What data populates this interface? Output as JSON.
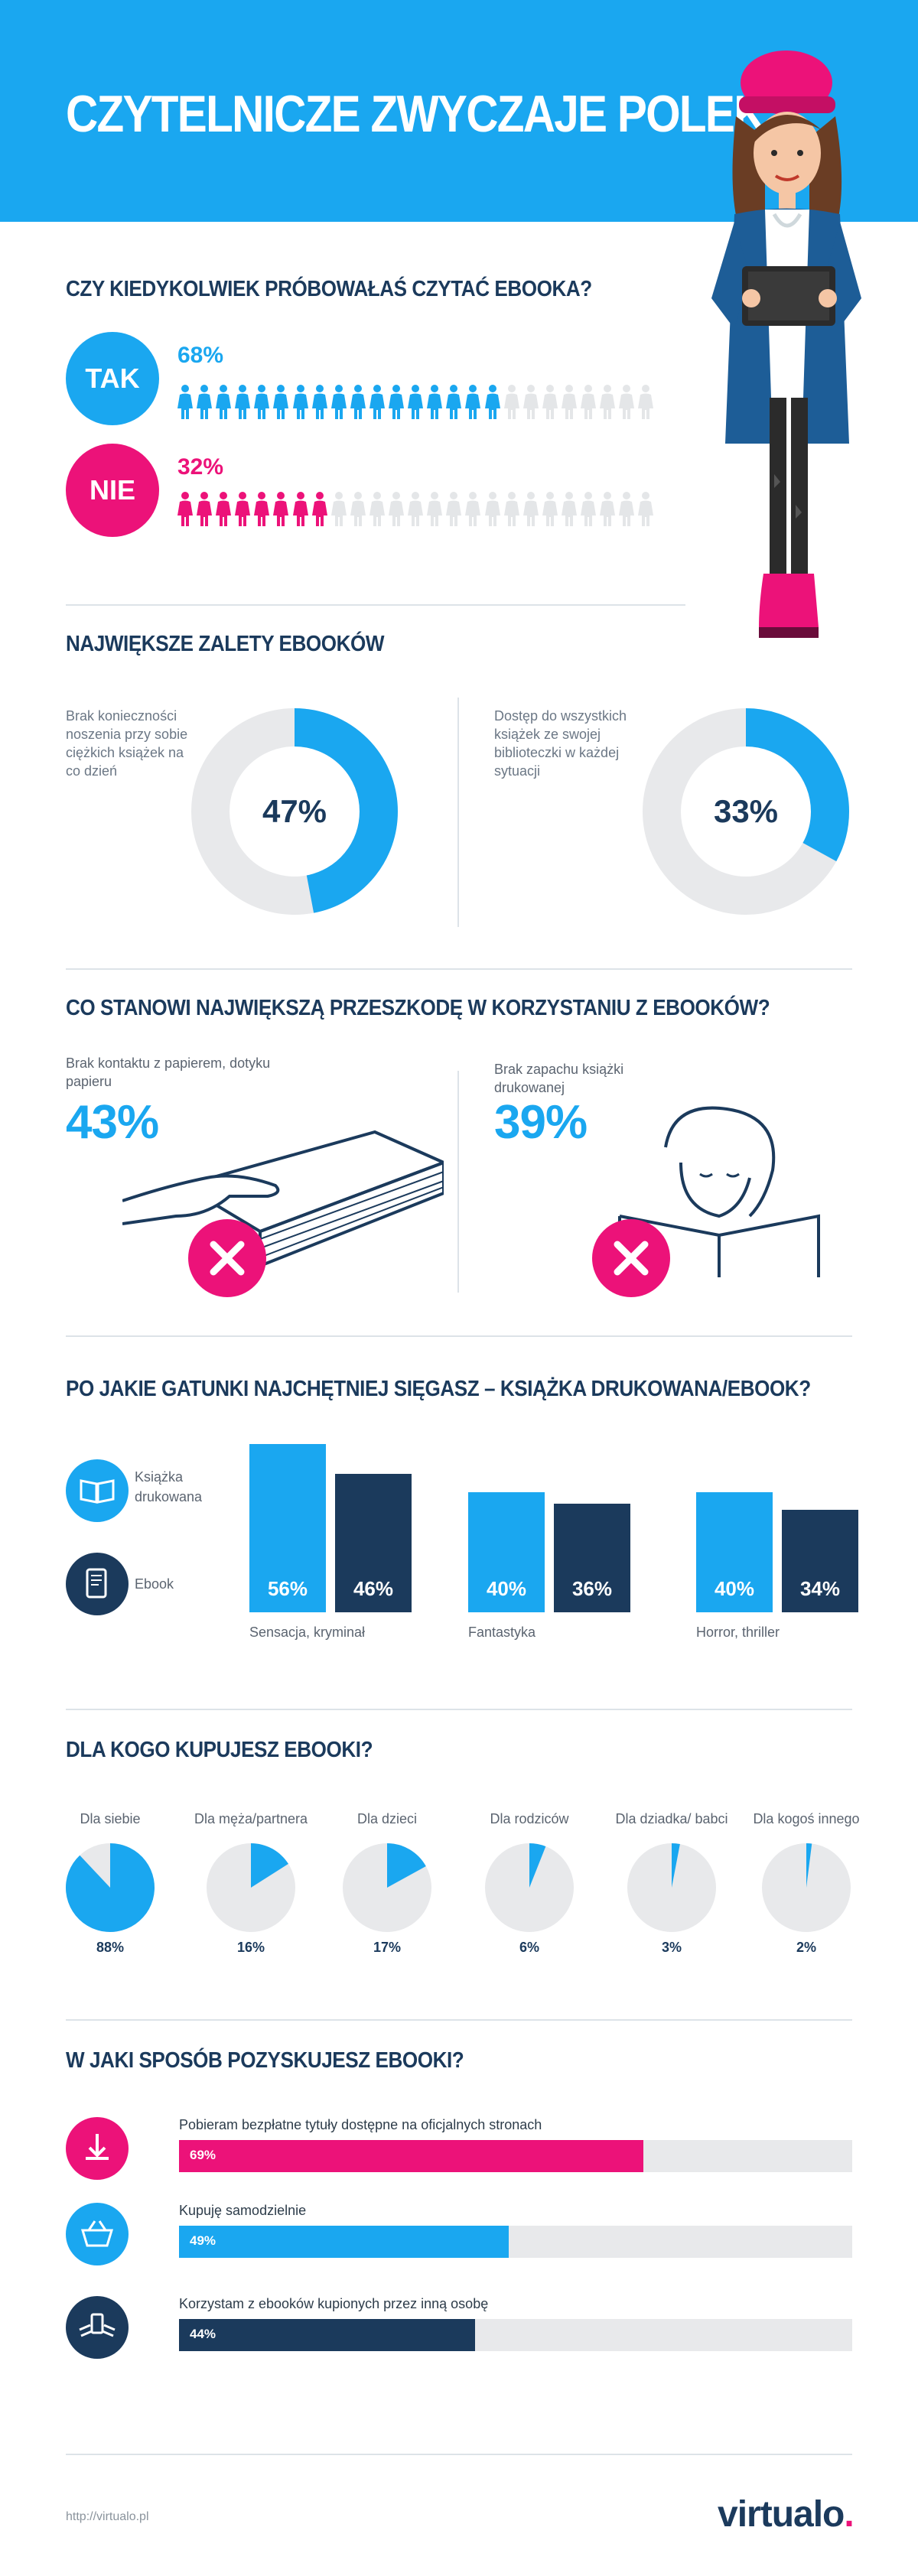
{
  "header": {
    "title": "CZYTELNICZE ZWYCZAJE POLEK."
  },
  "colors": {
    "blue": "#1aa7f0",
    "navy": "#1b3a5c",
    "pink": "#ec1279",
    "gray": "#e8e9eb"
  },
  "q1": {
    "title": "CZY KIEDYKOLWIEK PRÓBOWAŁAŚ CZYTAĆ EBOOKA?",
    "yes": {
      "label": "TAK",
      "value_text": "68%",
      "value": 68,
      "icons_filled": 17,
      "icons_total": 25
    },
    "no": {
      "label": "NIE",
      "value_text": "32%",
      "value": 32,
      "icons_filled": 8,
      "icons_total": 25
    }
  },
  "advantages": {
    "title": "NAJWIĘKSZE ZALETY EBOOKÓW",
    "items": [
      {
        "label": "Brak konieczności noszenia przy sobie ciężkich książek na co dzień",
        "value_text": "47%",
        "value": 47
      },
      {
        "label": "Dostęp do wszystkich książek ze swojej biblioteczki w każdej sytuacji",
        "value_text": "33%",
        "value": 33
      }
    ]
  },
  "obstacles": {
    "title": "CO STANOWI NAJWIĘKSZĄ PRZESZKODĘ W KORZYSTANIU Z EBOOKÓW?",
    "items": [
      {
        "label": "Brak kontaktu z papierem, dotyku papieru",
        "value_text": "43%",
        "value": 43
      },
      {
        "label": "Brak zapachu książki drukowanej",
        "value_text": "39%",
        "value": 39
      }
    ]
  },
  "chart_data": [
    {
      "type": "bar",
      "title": "PO JAKIE GATUNKI NAJCHĘTNIEJ SIĘGASZ – KSIĄŻKA DRUKOWANA/EBOOK?",
      "categories": [
        "Sensacja, kryminał",
        "Fantastyka",
        "Horror, thriller"
      ],
      "series": [
        {
          "name": "Książka drukowana",
          "values": [
            56,
            40,
            40
          ],
          "labels": [
            "56%",
            "40%",
            "40%"
          ]
        },
        {
          "name": "Ebook",
          "values": [
            46,
            36,
            34
          ],
          "labels": [
            "46%",
            "36%",
            "34%"
          ]
        }
      ],
      "ylim": [
        0,
        60
      ],
      "legend": "left"
    },
    {
      "type": "pie",
      "title": "DLA KOGO KUPUJESZ EBOOKI?",
      "categories": [
        "Dla siebie",
        "Dla męża/partnera",
        "Dla dzieci",
        "Dla rodziców",
        "Dla dziadka/ babci",
        "Dla kogoś innego"
      ],
      "values": [
        88,
        16,
        17,
        6,
        3,
        2
      ],
      "labels": [
        "88%",
        "16%",
        "17%",
        "6%",
        "3%",
        "2%"
      ]
    },
    {
      "type": "bar",
      "title": "W JAKI SPOSÓB POZYSKUJESZ EBOOKI?",
      "orientation": "horizontal",
      "categories": [
        "Pobieram bezpłatne tytuły dostępne na oficjalnych stronach",
        "Kupuję samodzielnie",
        "Korzystam z ebooków kupionych przez inną osobę"
      ],
      "values": [
        69,
        49,
        44
      ],
      "labels": [
        "69%",
        "49%",
        "44%"
      ],
      "colors": [
        "#ec1279",
        "#1aa7f0",
        "#1b3a5c"
      ],
      "icons": [
        "download-icon",
        "basket-icon",
        "hand-exchange-icon"
      ],
      "xlim": [
        0,
        100
      ]
    }
  ],
  "footer": {
    "url": "http://virtualo.pl",
    "logo_main": "virtualo",
    "logo_dot": "."
  }
}
